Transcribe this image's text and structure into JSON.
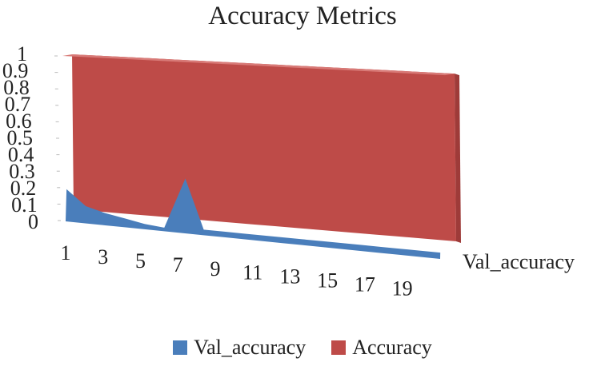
{
  "chart_data": {
    "type": "area",
    "title": "Accuracy Metrics",
    "xlabel": "",
    "ylabel": "",
    "ylim": [
      0,
      1
    ],
    "y_ticks": [
      "0",
      "0.1",
      "0.2",
      "0.3",
      "0.4",
      "0.5",
      "0.6",
      "0.7",
      "0.8",
      "0.9",
      "1"
    ],
    "x": [
      1,
      2,
      3,
      4,
      5,
      6,
      7,
      8,
      9,
      10,
      11,
      12,
      13,
      14,
      15,
      16,
      17,
      18,
      19,
      20
    ],
    "x_tick_labels": [
      "1",
      "3",
      "5",
      "7",
      "9",
      "11",
      "13",
      "15",
      "17",
      "19"
    ],
    "depth_axis_label": "Val_accuracy",
    "series": [
      {
        "name": "Val_accuracy",
        "color": "#4a7ebb",
        "values": [
          0.19,
          0.1,
          0.07,
          0.05,
          0.03,
          0.02,
          0.3,
          0.03,
          0.03,
          0.03,
          0.03,
          0.03,
          0.03,
          0.03,
          0.03,
          0.03,
          0.03,
          0.03,
          0.03,
          0.03
        ]
      },
      {
        "name": "Accuracy",
        "color": "#be4b48",
        "values": [
          0.99,
          0.99,
          0.99,
          0.99,
          0.99,
          0.99,
          0.99,
          0.99,
          0.99,
          0.99,
          0.99,
          0.99,
          0.99,
          0.99,
          0.99,
          0.99,
          0.99,
          0.99,
          0.99,
          0.99
        ]
      }
    ],
    "legend_position": "bottom",
    "grid": false
  }
}
